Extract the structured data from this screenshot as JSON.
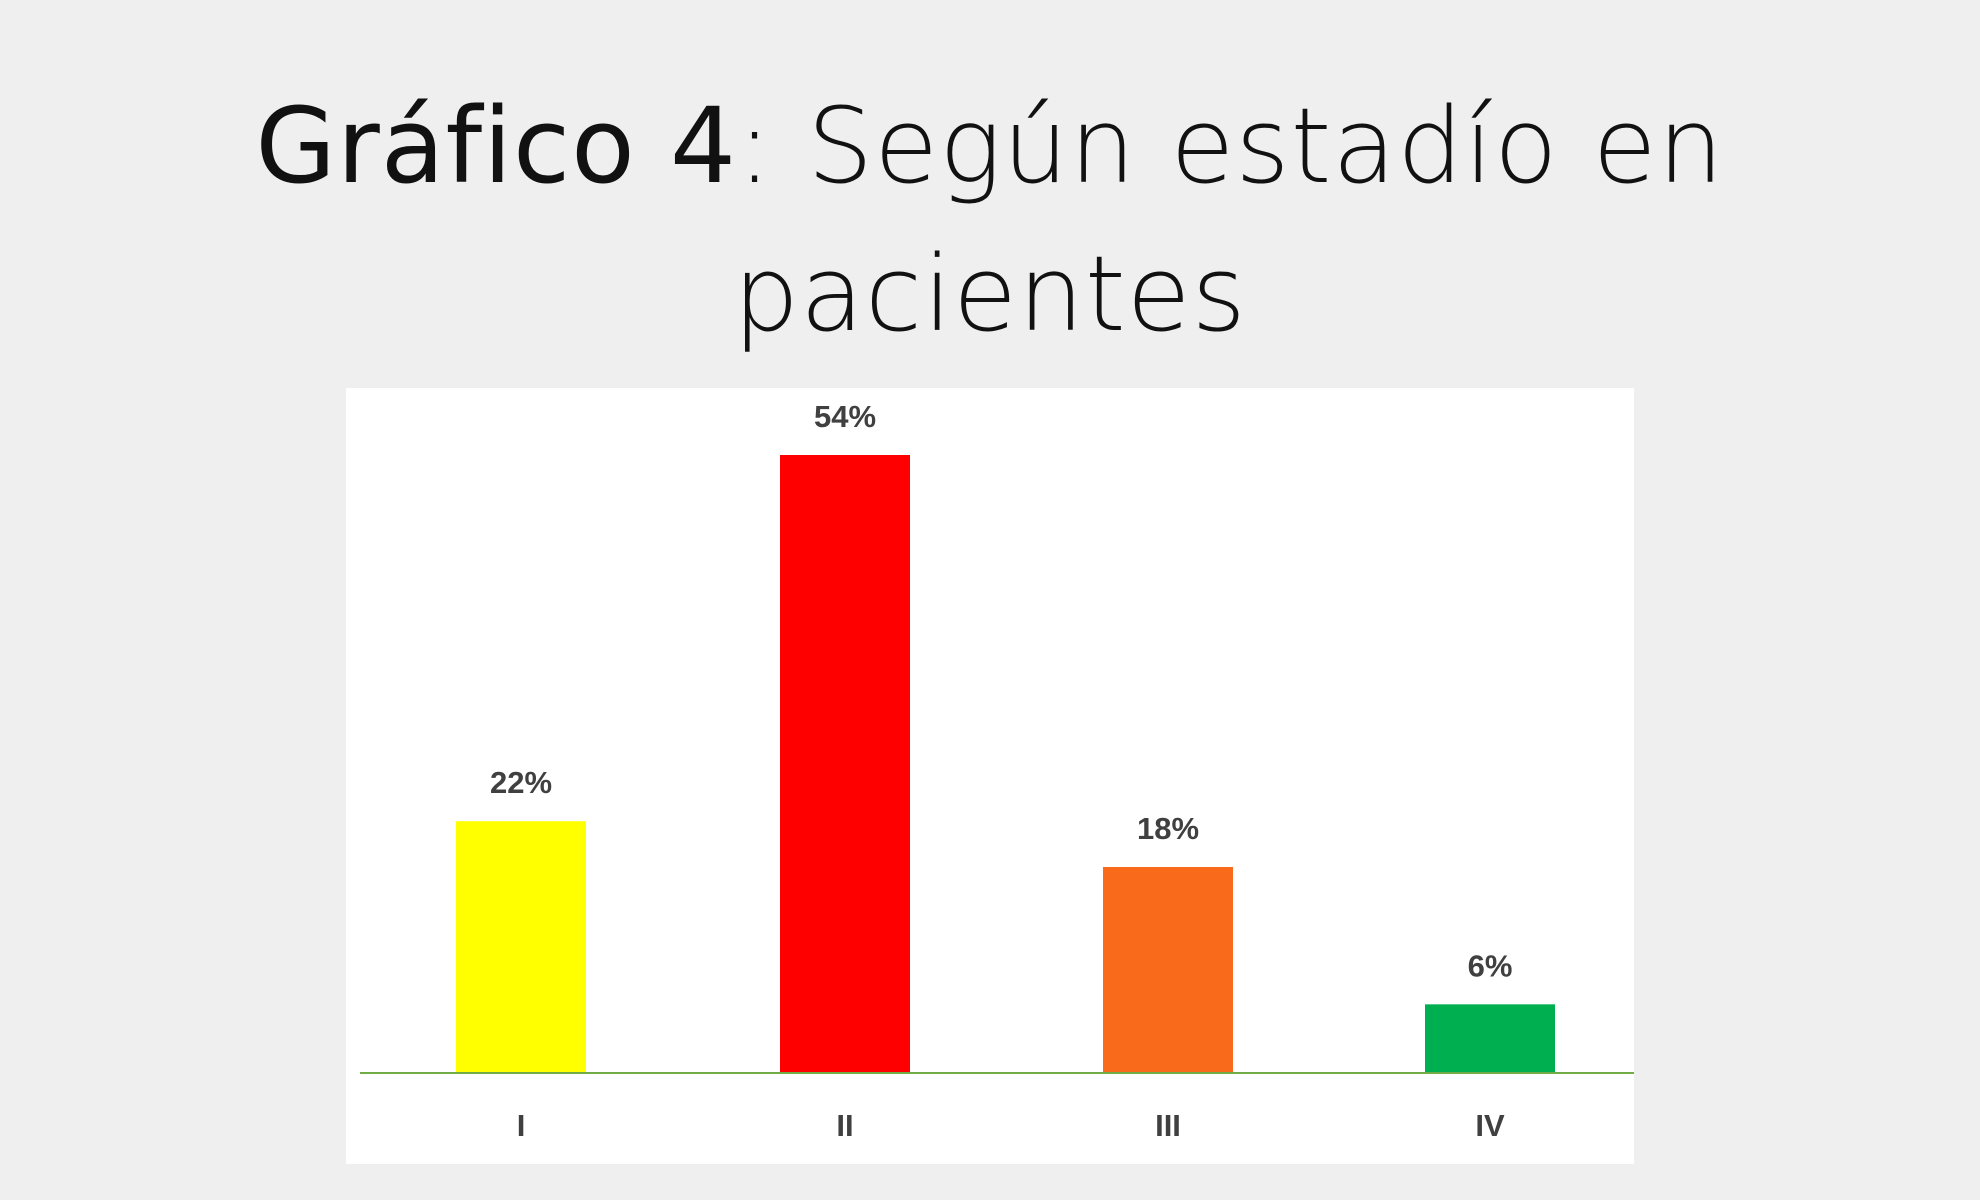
{
  "title": {
    "bold": "Gráfico 4",
    "rest": ": Según estadío en pacientes"
  },
  "chart_data": {
    "type": "bar",
    "categories": [
      "I",
      "II",
      "III",
      "IV"
    ],
    "values": [
      22,
      54,
      18,
      6
    ],
    "value_labels": [
      "22%",
      "54%",
      "18%",
      "6%"
    ],
    "colors": [
      "#ffff00",
      "#ff0000",
      "#f96b1a",
      "#00b050"
    ],
    "baseline_color": "#70ad47",
    "ylim": [
      0,
      54
    ],
    "grid": false,
    "legend": "none"
  }
}
